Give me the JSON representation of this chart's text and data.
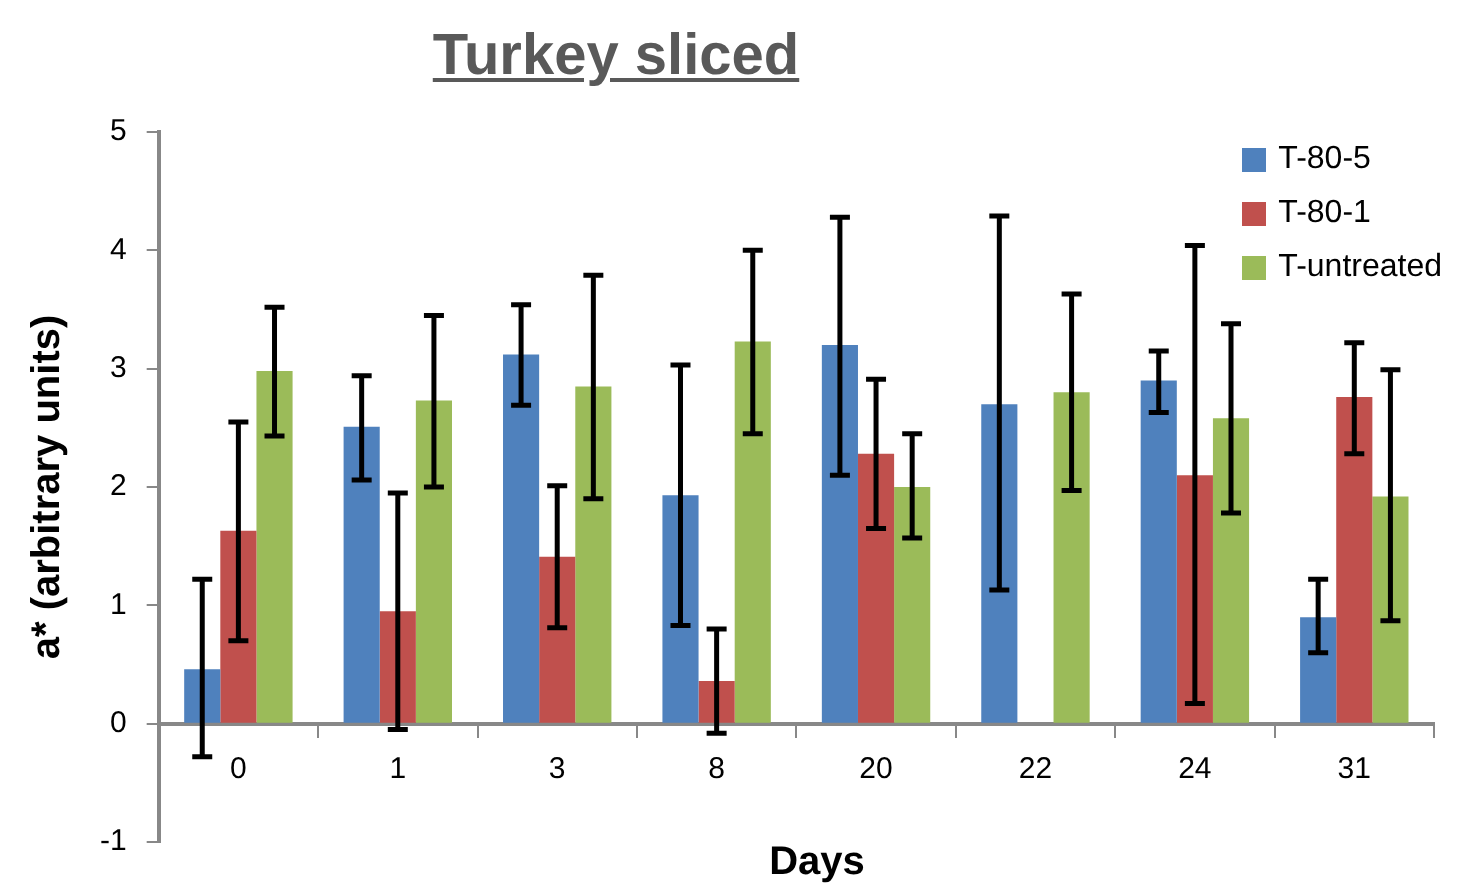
{
  "chart_data": {
    "type": "bar",
    "title": "Turkey sliced",
    "xlabel": "Days",
    "ylabel": "a* (arbitrary units)",
    "categories": [
      "0",
      "1",
      "3",
      "8",
      "20",
      "22",
      "24",
      "31"
    ],
    "series": [
      {
        "name": "T-80-5",
        "color": "#4f81bd",
        "values": [
          0.46,
          2.51,
          3.12,
          1.93,
          3.2,
          2.7,
          2.9,
          0.9
        ],
        "errors": [
          [
            -0.28,
            1.22
          ],
          [
            2.06,
            2.94
          ],
          [
            2.69,
            3.54
          ],
          [
            0.83,
            3.03
          ],
          [
            2.1,
            4.28
          ],
          [
            1.13,
            4.29
          ],
          [
            2.63,
            3.15
          ],
          [
            0.6,
            1.22
          ]
        ]
      },
      {
        "name": "T-80-1",
        "color": "#c0504d",
        "values": [
          1.63,
          0.95,
          1.41,
          0.36,
          2.28,
          null,
          2.1,
          2.76
        ],
        "errors": [
          [
            0.7,
            2.55
          ],
          [
            -0.05,
            1.95
          ],
          [
            0.81,
            2.01
          ],
          [
            -0.08,
            0.8
          ],
          [
            1.65,
            2.91
          ],
          null,
          [
            0.17,
            4.04
          ],
          [
            2.28,
            3.22
          ]
        ]
      },
      {
        "name": "T-untreated",
        "color": "#9bbb59",
        "values": [
          2.98,
          2.73,
          2.85,
          3.23,
          2.0,
          2.8,
          2.58,
          1.92
        ],
        "errors": [
          [
            2.43,
            3.52
          ],
          [
            2.0,
            3.45
          ],
          [
            1.9,
            3.79
          ],
          [
            2.45,
            4.0
          ],
          [
            1.57,
            2.45
          ],
          [
            1.97,
            3.63
          ],
          [
            1.78,
            3.38
          ],
          [
            0.87,
            2.99
          ]
        ]
      }
    ],
    "ylim": [
      -1,
      5
    ],
    "yticks": [
      -1,
      0,
      1,
      2,
      3,
      4,
      5
    ],
    "grid": false,
    "legend": "top right"
  }
}
